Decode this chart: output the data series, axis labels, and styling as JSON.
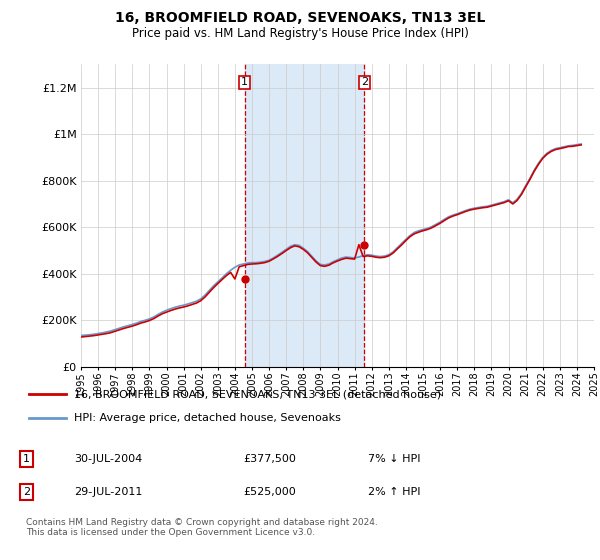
{
  "title": "16, BROOMFIELD ROAD, SEVENOAKS, TN13 3EL",
  "subtitle": "Price paid vs. HM Land Registry's House Price Index (HPI)",
  "legend_line1": "16, BROOMFIELD ROAD, SEVENOAKS, TN13 3EL (detached house)",
  "legend_line2": "HPI: Average price, detached house, Sevenoaks",
  "annotation1_label": "1",
  "annotation1_date": "30-JUL-2004",
  "annotation1_price": "£377,500",
  "annotation1_hpi": "7% ↓ HPI",
  "annotation1_year": 2004.57,
  "annotation1_value": 377500,
  "annotation2_label": "2",
  "annotation2_date": "29-JUL-2011",
  "annotation2_price": "£525,000",
  "annotation2_hpi": "2% ↑ HPI",
  "annotation2_year": 2011.57,
  "annotation2_value": 525000,
  "footer": "Contains HM Land Registry data © Crown copyright and database right 2024.\nThis data is licensed under the Open Government Licence v3.0.",
  "shade_color": "#dce9f7",
  "line_color_price": "#cc0000",
  "line_color_hpi": "#6699cc",
  "ylim": [
    0,
    1300000
  ],
  "yticks": [
    0,
    200000,
    400000,
    600000,
    800000,
    1000000,
    1200000
  ],
  "ytick_labels": [
    "£0",
    "£200K",
    "£400K",
    "£600K",
    "£800K",
    "£1M",
    "£1.2M"
  ],
  "hpi_data": {
    "years": [
      1995.0,
      1995.25,
      1995.5,
      1995.75,
      1996.0,
      1996.25,
      1996.5,
      1996.75,
      1997.0,
      1997.25,
      1997.5,
      1997.75,
      1998.0,
      1998.25,
      1998.5,
      1998.75,
      1999.0,
      1999.25,
      1999.5,
      1999.75,
      2000.0,
      2000.25,
      2000.5,
      2000.75,
      2001.0,
      2001.25,
      2001.5,
      2001.75,
      2002.0,
      2002.25,
      2002.5,
      2002.75,
      2003.0,
      2003.25,
      2003.5,
      2003.75,
      2004.0,
      2004.25,
      2004.5,
      2004.75,
      2005.0,
      2005.25,
      2005.5,
      2005.75,
      2006.0,
      2006.25,
      2006.5,
      2006.75,
      2007.0,
      2007.25,
      2007.5,
      2007.75,
      2008.0,
      2008.25,
      2008.5,
      2008.75,
      2009.0,
      2009.25,
      2009.5,
      2009.75,
      2010.0,
      2010.25,
      2010.5,
      2010.75,
      2011.0,
      2011.25,
      2011.5,
      2011.75,
      2012.0,
      2012.25,
      2012.5,
      2012.75,
      2013.0,
      2013.25,
      2013.5,
      2013.75,
      2014.0,
      2014.25,
      2014.5,
      2014.75,
      2015.0,
      2015.25,
      2015.5,
      2015.75,
      2016.0,
      2016.25,
      2016.5,
      2016.75,
      2017.0,
      2017.25,
      2017.5,
      2017.75,
      2018.0,
      2018.25,
      2018.5,
      2018.75,
      2019.0,
      2019.25,
      2019.5,
      2019.75,
      2020.0,
      2020.25,
      2020.5,
      2020.75,
      2021.0,
      2021.25,
      2021.5,
      2021.75,
      2022.0,
      2022.25,
      2022.5,
      2022.75,
      2023.0,
      2023.25,
      2023.5,
      2023.75,
      2024.0,
      2024.25
    ],
    "values": [
      135000,
      136000,
      138000,
      140000,
      143000,
      146000,
      150000,
      154000,
      160000,
      166000,
      172000,
      177000,
      182000,
      188000,
      195000,
      200000,
      206000,
      214000,
      225000,
      235000,
      243000,
      250000,
      256000,
      261000,
      265000,
      270000,
      276000,
      282000,
      292000,
      308000,
      328000,
      348000,
      365000,
      382000,
      400000,
      415000,
      428000,
      438000,
      442000,
      446000,
      448000,
      448000,
      450000,
      453000,
      458000,
      468000,
      480000,
      492000,
      505000,
      518000,
      525000,
      522000,
      510000,
      495000,
      475000,
      455000,
      440000,
      438000,
      442000,
      452000,
      460000,
      468000,
      472000,
      470000,
      468000,
      472000,
      478000,
      482000,
      480000,
      476000,
      474000,
      476000,
      482000,
      494000,
      512000,
      530000,
      548000,
      565000,
      578000,
      585000,
      590000,
      595000,
      602000,
      612000,
      622000,
      634000,
      645000,
      652000,
      658000,
      665000,
      672000,
      678000,
      682000,
      685000,
      688000,
      690000,
      695000,
      700000,
      705000,
      710000,
      718000,
      705000,
      720000,
      745000,
      778000,
      810000,
      845000,
      875000,
      900000,
      918000,
      930000,
      938000,
      942000,
      946000,
      950000,
      952000,
      955000,
      958000
    ]
  },
  "price_data": {
    "years": [
      1995.0,
      1995.25,
      1995.5,
      1995.75,
      1996.0,
      1996.25,
      1996.5,
      1996.75,
      1997.0,
      1997.25,
      1997.5,
      1997.75,
      1998.0,
      1998.25,
      1998.5,
      1998.75,
      1999.0,
      1999.25,
      1999.5,
      1999.75,
      2000.0,
      2000.25,
      2000.5,
      2000.75,
      2001.0,
      2001.25,
      2001.5,
      2001.75,
      2002.0,
      2002.25,
      2002.5,
      2002.75,
      2003.0,
      2003.25,
      2003.5,
      2003.75,
      2004.0,
      2004.25,
      2004.5,
      2004.75,
      2005.0,
      2005.25,
      2005.5,
      2005.75,
      2006.0,
      2006.25,
      2006.5,
      2006.75,
      2007.0,
      2007.25,
      2007.5,
      2007.75,
      2008.0,
      2008.25,
      2008.5,
      2008.75,
      2009.0,
      2009.25,
      2009.5,
      2009.75,
      2010.0,
      2010.25,
      2010.5,
      2010.75,
      2011.0,
      2011.25,
      2011.5,
      2011.75,
      2012.0,
      2012.25,
      2012.5,
      2012.75,
      2013.0,
      2013.25,
      2013.5,
      2013.75,
      2014.0,
      2014.25,
      2014.5,
      2014.75,
      2015.0,
      2015.25,
      2015.5,
      2015.75,
      2016.0,
      2016.25,
      2016.5,
      2016.75,
      2017.0,
      2017.25,
      2017.5,
      2017.75,
      2018.0,
      2018.25,
      2018.5,
      2018.75,
      2019.0,
      2019.25,
      2019.5,
      2019.75,
      2020.0,
      2020.25,
      2020.5,
      2020.75,
      2021.0,
      2021.25,
      2021.5,
      2021.75,
      2022.0,
      2022.25,
      2022.5,
      2022.75,
      2023.0,
      2023.25,
      2023.5,
      2023.75,
      2024.0,
      2024.25
    ],
    "values": [
      128000,
      130000,
      132000,
      134000,
      137000,
      140000,
      143000,
      147000,
      153000,
      159000,
      165000,
      170000,
      175000,
      181000,
      188000,
      193000,
      199000,
      207000,
      218000,
      228000,
      235000,
      242000,
      248000,
      253000,
      257000,
      262000,
      268000,
      274000,
      284000,
      300000,
      320000,
      340000,
      358000,
      375000,
      392000,
      406000,
      377500,
      430000,
      435000,
      440000,
      442000,
      443000,
      445000,
      448000,
      454000,
      464000,
      475000,
      487000,
      500000,
      512000,
      520000,
      516000,
      505000,
      490000,
      470000,
      450000,
      435000,
      432000,
      437000,
      447000,
      455000,
      462000,
      467000,
      465000,
      463000,
      525000,
      474000,
      477000,
      475000,
      471000,
      469000,
      471000,
      477000,
      489000,
      507000,
      524000,
      543000,
      560000,
      572000,
      579000,
      585000,
      590000,
      597000,
      607000,
      617000,
      629000,
      640000,
      648000,
      654000,
      661000,
      668000,
      674000,
      678000,
      681000,
      684000,
      686000,
      691000,
      696000,
      701000,
      706000,
      714000,
      700000,
      715000,
      740000,
      773000,
      805000,
      840000,
      870000,
      896000,
      914000,
      926000,
      934000,
      938000,
      942000,
      947000,
      948000,
      951000,
      954000
    ]
  }
}
